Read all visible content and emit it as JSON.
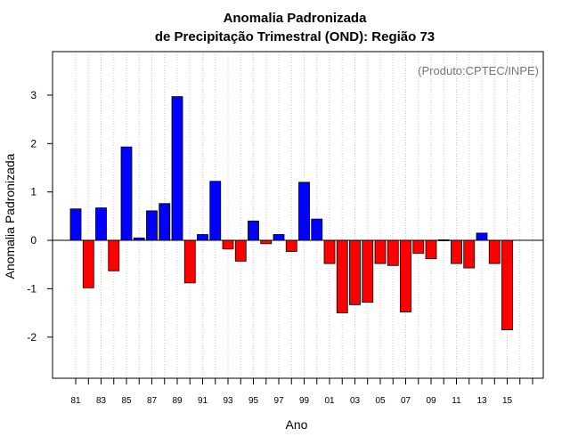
{
  "chart_data": {
    "type": "bar",
    "title": "Anomalia Padronizada",
    "subtitle": "de Precipitação Trimestral (OND): Região 73",
    "xlabel": "Ano",
    "ylabel": "Anomalia Padronizada",
    "annotation": "(Produto:CPTEC/INPE)",
    "ylim": [
      -2.85,
      3.9
    ],
    "yticks": [
      -2,
      -1,
      0,
      1,
      2,
      3
    ],
    "ytick_labels": [
      "-2",
      "-1",
      "0",
      "1",
      "2",
      "3"
    ],
    "categories": [
      "81",
      "82",
      "83",
      "84",
      "85",
      "86",
      "87",
      "88",
      "89",
      "90",
      "91",
      "92",
      "93",
      "94",
      "95",
      "96",
      "97",
      "98",
      "99",
      "00",
      "01",
      "02",
      "03",
      "04",
      "05",
      "06",
      "07",
      "08",
      "09",
      "10",
      "11",
      "12",
      "13",
      "14",
      "15",
      "16",
      "17"
    ],
    "xtick_labels": [
      "81",
      "83",
      "85",
      "87",
      "89",
      "91",
      "93",
      "95",
      "97",
      "99",
      "01",
      "03",
      "05",
      "07",
      "09",
      "11",
      "13",
      "15"
    ],
    "values": [
      0.65,
      -0.98,
      0.67,
      -0.63,
      1.93,
      0.05,
      0.61,
      0.76,
      2.97,
      -0.88,
      0.12,
      1.22,
      -0.18,
      -0.43,
      0.4,
      -0.07,
      0.12,
      -0.23,
      1.2,
      0.44,
      -0.48,
      -1.5,
      -1.33,
      -1.28,
      -0.48,
      -0.52,
      -1.48,
      -0.27,
      -0.38,
      0.01,
      -0.48,
      -0.57,
      0.15,
      -0.48,
      -1.85,
      null,
      null
    ],
    "positive_color": "#0000ff",
    "negative_color": "#ff0000",
    "grid": "vertical dotted"
  }
}
